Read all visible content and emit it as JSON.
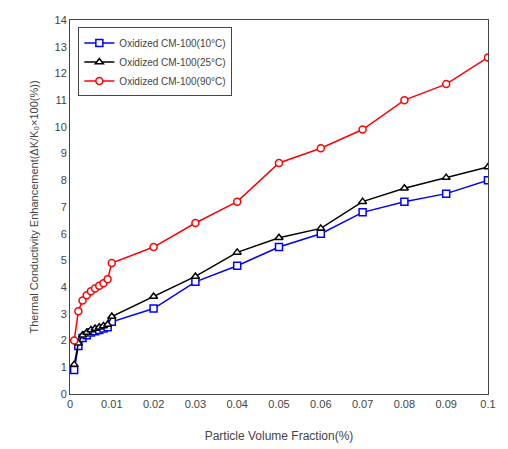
{
  "chart_data": {
    "type": "line",
    "xlabel": "Particle Volume Fraction(%)",
    "ylabel": "Thermal Conductivity Enhancement(ΔK/K₀×100(%))",
    "xlim": [
      0,
      0.1
    ],
    "ylim": [
      0,
      14
    ],
    "xticks": [
      0,
      0.01,
      0.02,
      0.03,
      0.04,
      0.05,
      0.06,
      0.07,
      0.08,
      0.09,
      0.1
    ],
    "yticks": [
      0,
      1,
      2,
      3,
      4,
      5,
      6,
      7,
      8,
      9,
      10,
      11,
      12,
      13,
      14
    ],
    "grid": false,
    "legend": "upper left",
    "series": [
      {
        "name": "Oxidized CM-100(10°C)",
        "color": "blue",
        "marker": "square",
        "x": [
          0.001,
          0.002,
          0.003,
          0.004,
          0.005,
          0.006,
          0.007,
          0.008,
          0.009,
          0.01,
          0.02,
          0.03,
          0.04,
          0.05,
          0.06,
          0.07,
          0.08,
          0.09,
          0.1
        ],
        "values": [
          0.9,
          1.8,
          2.1,
          2.2,
          2.3,
          2.35,
          2.4,
          2.45,
          2.5,
          2.7,
          3.2,
          4.2,
          4.8,
          5.5,
          6.0,
          6.8,
          7.2,
          7.5,
          8.0
        ]
      },
      {
        "name": "Oxidized CM-100(25°C)",
        "color": "black",
        "marker": "triangle-up",
        "x": [
          0.001,
          0.002,
          0.003,
          0.004,
          0.005,
          0.006,
          0.007,
          0.008,
          0.009,
          0.01,
          0.02,
          0.03,
          0.04,
          0.05,
          0.06,
          0.07,
          0.08,
          0.09,
          0.1
        ],
        "values": [
          1.1,
          1.9,
          2.2,
          2.3,
          2.4,
          2.45,
          2.5,
          2.55,
          2.6,
          2.9,
          3.65,
          4.4,
          5.3,
          5.85,
          6.2,
          7.2,
          7.7,
          8.1,
          8.5
        ]
      },
      {
        "name": "Oxidized CM-100(90°C)",
        "color": "red",
        "marker": "circle",
        "x": [
          0.001,
          0.002,
          0.003,
          0.004,
          0.005,
          0.006,
          0.007,
          0.008,
          0.009,
          0.01,
          0.02,
          0.03,
          0.04,
          0.05,
          0.06,
          0.07,
          0.08,
          0.09,
          0.1
        ],
        "values": [
          2.0,
          3.1,
          3.5,
          3.7,
          3.85,
          3.95,
          4.05,
          4.15,
          4.3,
          4.9,
          5.5,
          6.4,
          7.2,
          8.65,
          9.2,
          9.9,
          11.0,
          11.6,
          12.6
        ]
      }
    ]
  }
}
